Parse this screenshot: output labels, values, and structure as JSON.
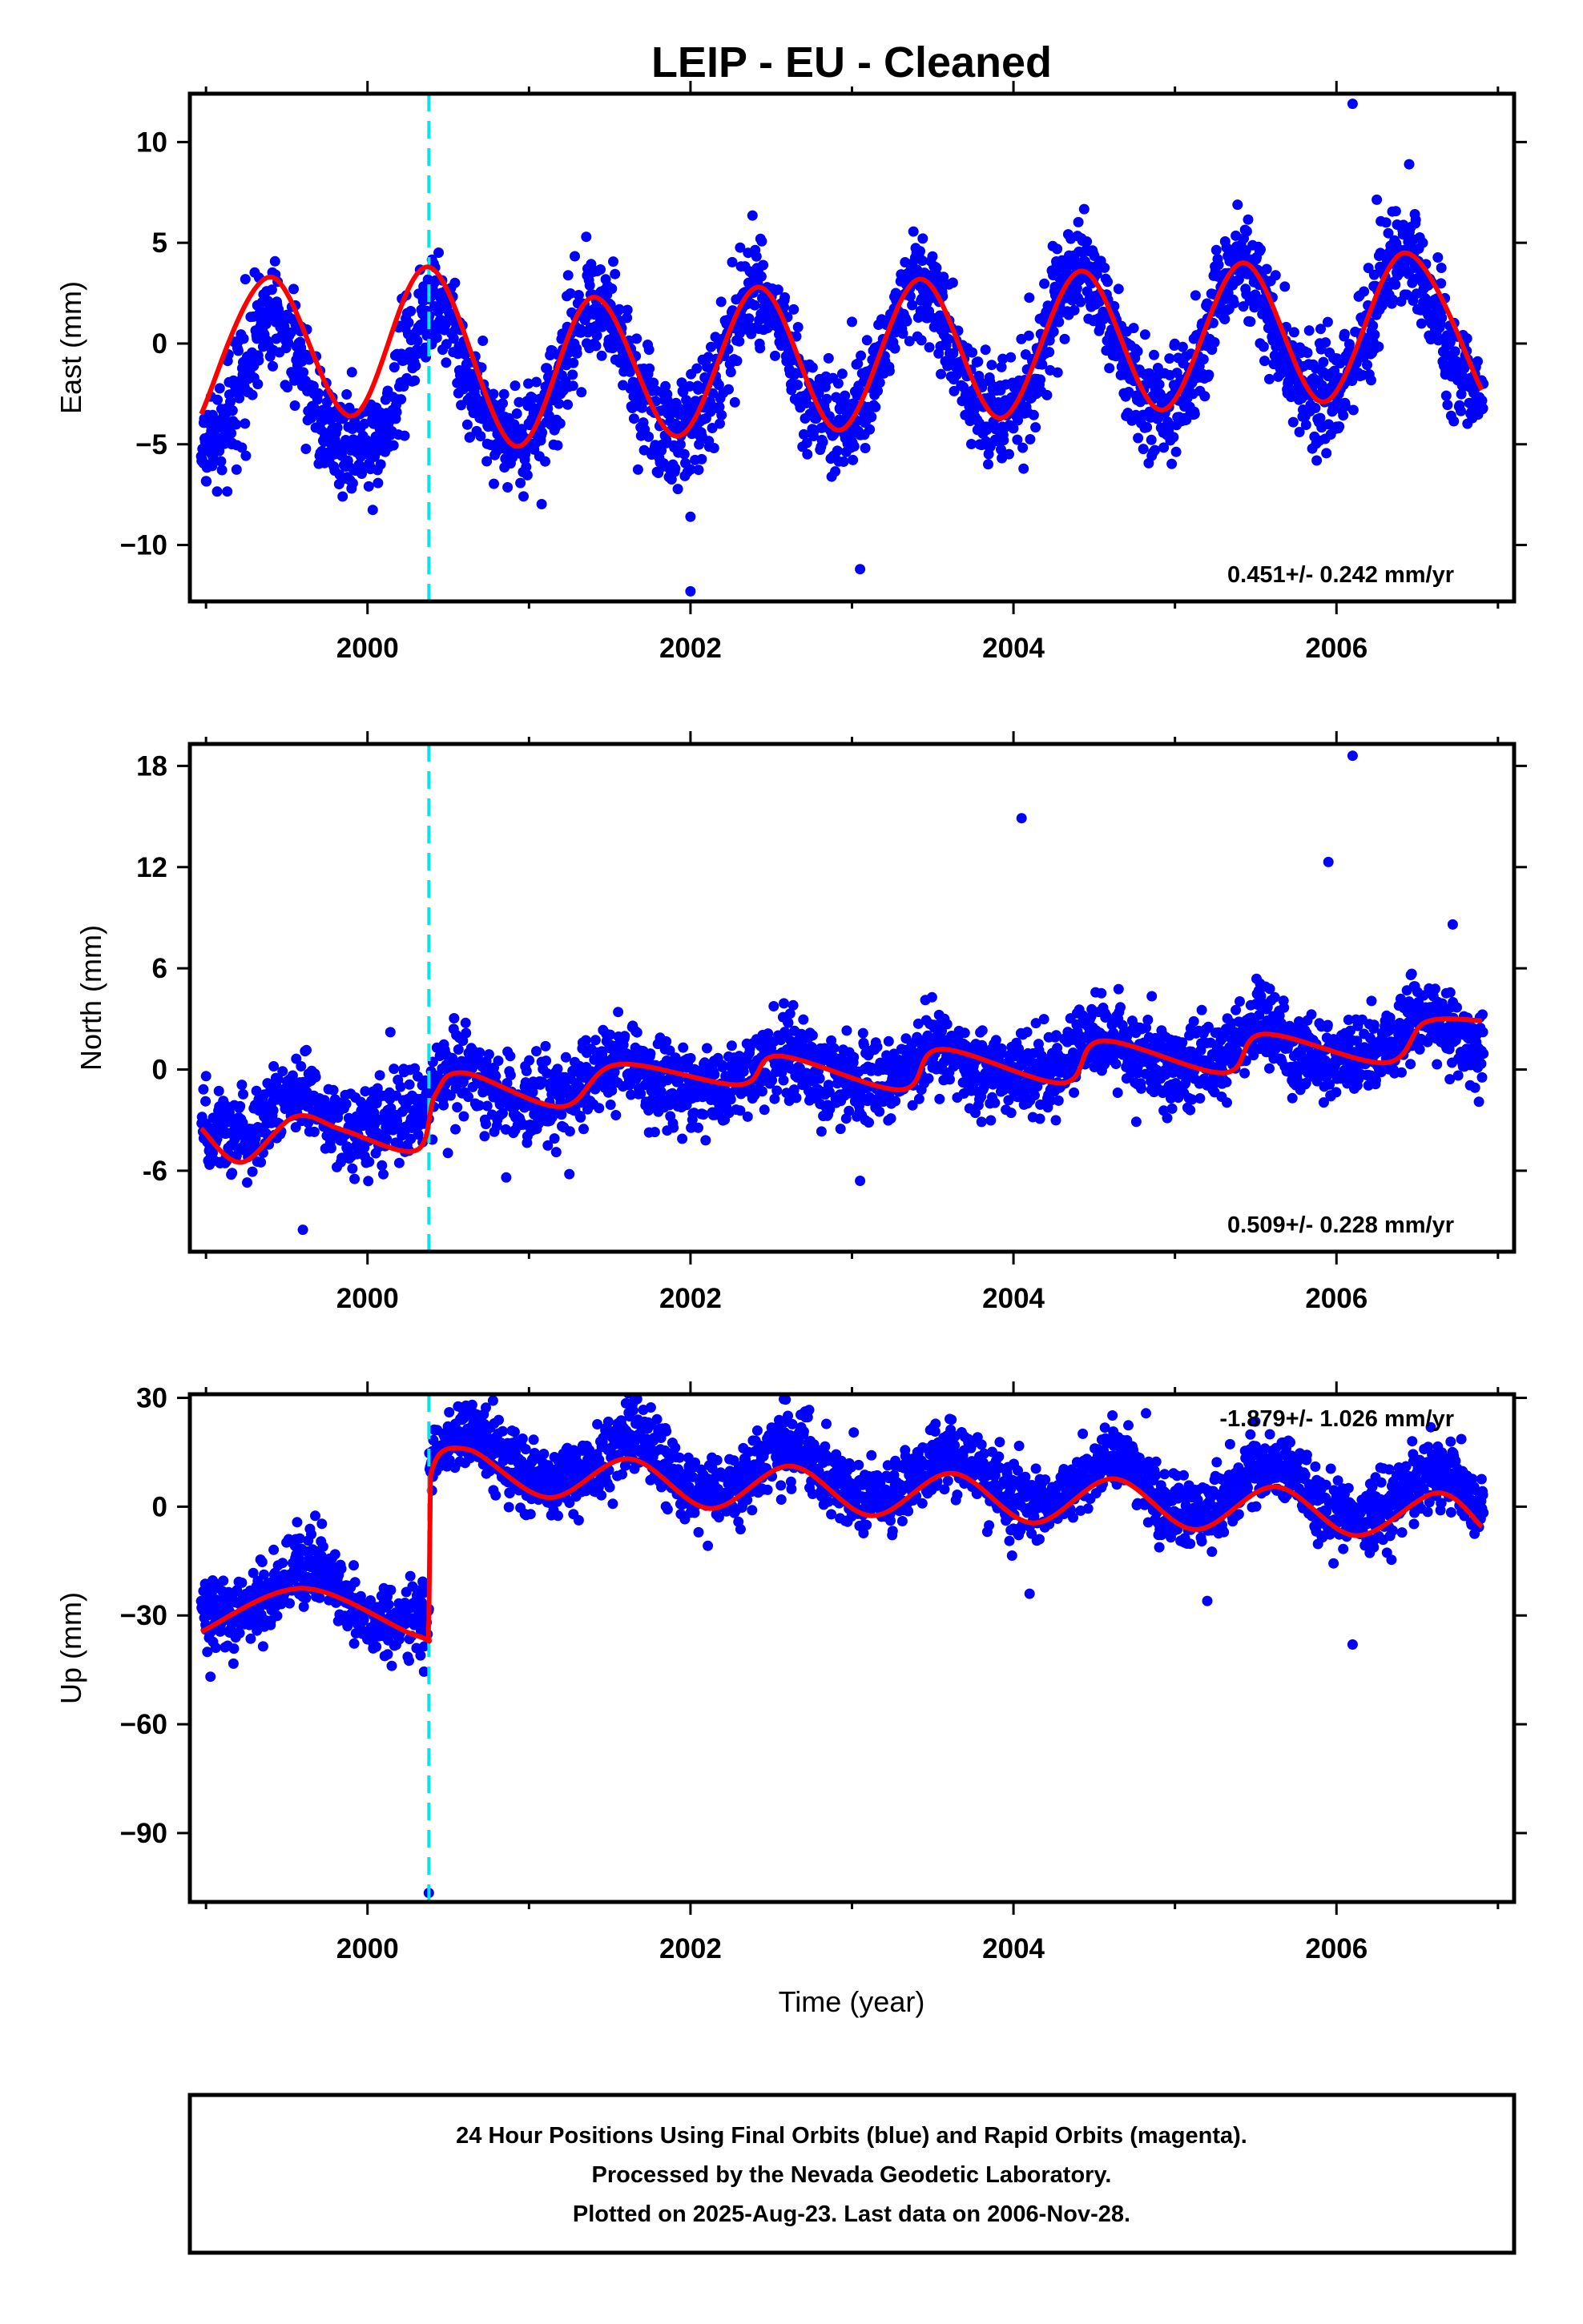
{
  "title": "LEIP  - EU - Cleaned",
  "xlabel": "Time (year)",
  "footer": [
    "24 Hour Positions Using Final Orbits (blue) and Rapid Orbits (magenta).",
    "Processed by the Nevada Geodetic Laboratory.",
    "Plotted on 2025-Aug-23. Last data on 2006-Nov-28."
  ],
  "colors": {
    "points": "#0000ff",
    "model": "#ff0000",
    "step": "#00e5ee"
  },
  "chart_data": [
    {
      "type": "scatter",
      "ylabel": "East (mm)",
      "rate": "0.451+/- 0.242 mm/yr",
      "xlim": [
        1998.9,
        2007.1
      ],
      "ylim": [
        -12.8,
        12.4
      ],
      "xticks": [
        "2000",
        "2002",
        "2004",
        "2006"
      ],
      "yticks": [
        "10",
        "5",
        "0",
        "−5",
        "−10"
      ],
      "step_epoch": 2000.38,
      "model": {
        "rate": 0.451,
        "amp_annual": 3.4,
        "phase_year": 2000.41,
        "amp_semi": 0.4,
        "offset": -0.9,
        "step": 0.0,
        "noise_sd": 1.3
      },
      "model_curve": [
        [
          1998.97,
          -3.5
        ],
        [
          1999.4,
          3.3
        ],
        [
          1999.9,
          -3.6
        ],
        [
          2000.38,
          3.8
        ],
        [
          2000.92,
          -5.1
        ],
        [
          2001.4,
          2.3
        ],
        [
          2001.92,
          -4.6
        ],
        [
          2002.42,
          2.8
        ],
        [
          2002.92,
          -4.3
        ],
        [
          2003.42,
          3.2
        ],
        [
          2003.92,
          -3.7
        ],
        [
          2004.42,
          3.6
        ],
        [
          2004.92,
          -3.3
        ],
        [
          2005.42,
          4.0
        ],
        [
          2005.92,
          -2.9
        ],
        [
          2006.42,
          4.5
        ],
        [
          2006.9,
          -2.3
        ]
      ],
      "outliers": [
        [
          2006.1,
          11.9
        ],
        [
          2006.45,
          8.9
        ],
        [
          2002.0,
          -12.3
        ],
        [
          2003.05,
          -11.2
        ],
        [
          2002.0,
          -8.6
        ]
      ]
    },
    {
      "type": "scatter",
      "ylabel": "North (mm)",
      "rate": "0.509+/- 0.228 mm/yr",
      "xlim": [
        1998.9,
        2007.1
      ],
      "ylim": [
        -10.8,
        19.3
      ],
      "xticks": [
        "2000",
        "2002",
        "2004",
        "2006"
      ],
      "yticks": [
        "18",
        "12",
        "6",
        "0",
        "-6"
      ],
      "step_epoch": 2000.38,
      "model": {
        "rate": 0.509,
        "amp_annual": 1.0,
        "phase_year": 2000.55,
        "amp_semi": 0.3,
        "offset": -0.1,
        "step": 1.0,
        "noise_sd": 1.2
      },
      "model_curve": [
        [
          1998.97,
          -3.5
        ],
        [
          1999.22,
          -5.5
        ],
        [
          1999.55,
          -2.8
        ],
        [
          1999.85,
          -3.6
        ],
        [
          2000.3,
          -4.8
        ],
        [
          2000.42,
          -1.5
        ],
        [
          2000.6,
          -0.2
        ],
        [
          2001.2,
          -2.2
        ],
        [
          2001.55,
          0.3
        ],
        [
          2002.3,
          -0.9
        ],
        [
          2002.55,
          0.8
        ],
        [
          2003.3,
          -1.2
        ],
        [
          2003.55,
          1.2
        ],
        [
          2004.3,
          -0.8
        ],
        [
          2004.55,
          1.7
        ],
        [
          2005.3,
          -0.2
        ],
        [
          2005.55,
          2.1
        ],
        [
          2006.3,
          0.4
        ],
        [
          2006.55,
          2.8
        ],
        [
          2006.9,
          2.9
        ]
      ],
      "outliers": [
        [
          2006.1,
          18.6
        ],
        [
          2004.05,
          14.9
        ],
        [
          2005.95,
          12.3
        ],
        [
          2006.72,
          8.6
        ],
        [
          2003.05,
          -6.6
        ],
        [
          2001.25,
          -6.2
        ],
        [
          1999.6,
          -9.5
        ]
      ]
    },
    {
      "type": "scatter",
      "ylabel": "Up (mm)",
      "rate": "-1.879+/- 1.026 mm/yr",
      "xlim": [
        1998.9,
        2007.1
      ],
      "ylim": [
        -109,
        31
      ],
      "xticks": [
        "2000",
        "2002",
        "2004",
        "2006"
      ],
      "yticks": [
        "30",
        "0",
        "−30",
        "−60",
        "−90"
      ],
      "step_epoch": 2000.38,
      "model": {
        "rate": -1.879,
        "amp_annual": 6.8,
        "phase_year": 2000.62,
        "amp_semi": 1.2,
        "offset": 8.6,
        "step": 40.0,
        "noise_sd": 5.0
      },
      "model_curve": [
        [
          1998.97,
          -34.5
        ],
        [
          1999.6,
          -22.5
        ],
        [
          2000.3,
          -35.5
        ],
        [
          2000.38,
          -32.0
        ],
        [
          2000.39,
          8.5
        ],
        [
          2000.62,
          15.8
        ],
        [
          2001.12,
          2.5
        ],
        [
          2001.62,
          13.2
        ],
        [
          2002.12,
          -0.5
        ],
        [
          2002.62,
          11.2
        ],
        [
          2003.12,
          -2.5
        ],
        [
          2003.62,
          9.2
        ],
        [
          2004.12,
          -4.5
        ],
        [
          2004.62,
          7.7
        ],
        [
          2005.12,
          -6.3
        ],
        [
          2005.62,
          5.5
        ],
        [
          2006.12,
          -8.0
        ],
        [
          2006.62,
          3.8
        ],
        [
          2006.9,
          -5.5
        ]
      ],
      "outliers": [
        [
          2000.38,
          -106.5
        ],
        [
          2006.1,
          -38.0
        ],
        [
          2005.2,
          -26.0
        ],
        [
          2004.1,
          -24.0
        ],
        [
          2001.6,
          28.5
        ],
        [
          2000.35,
          -45.5
        ]
      ]
    }
  ]
}
